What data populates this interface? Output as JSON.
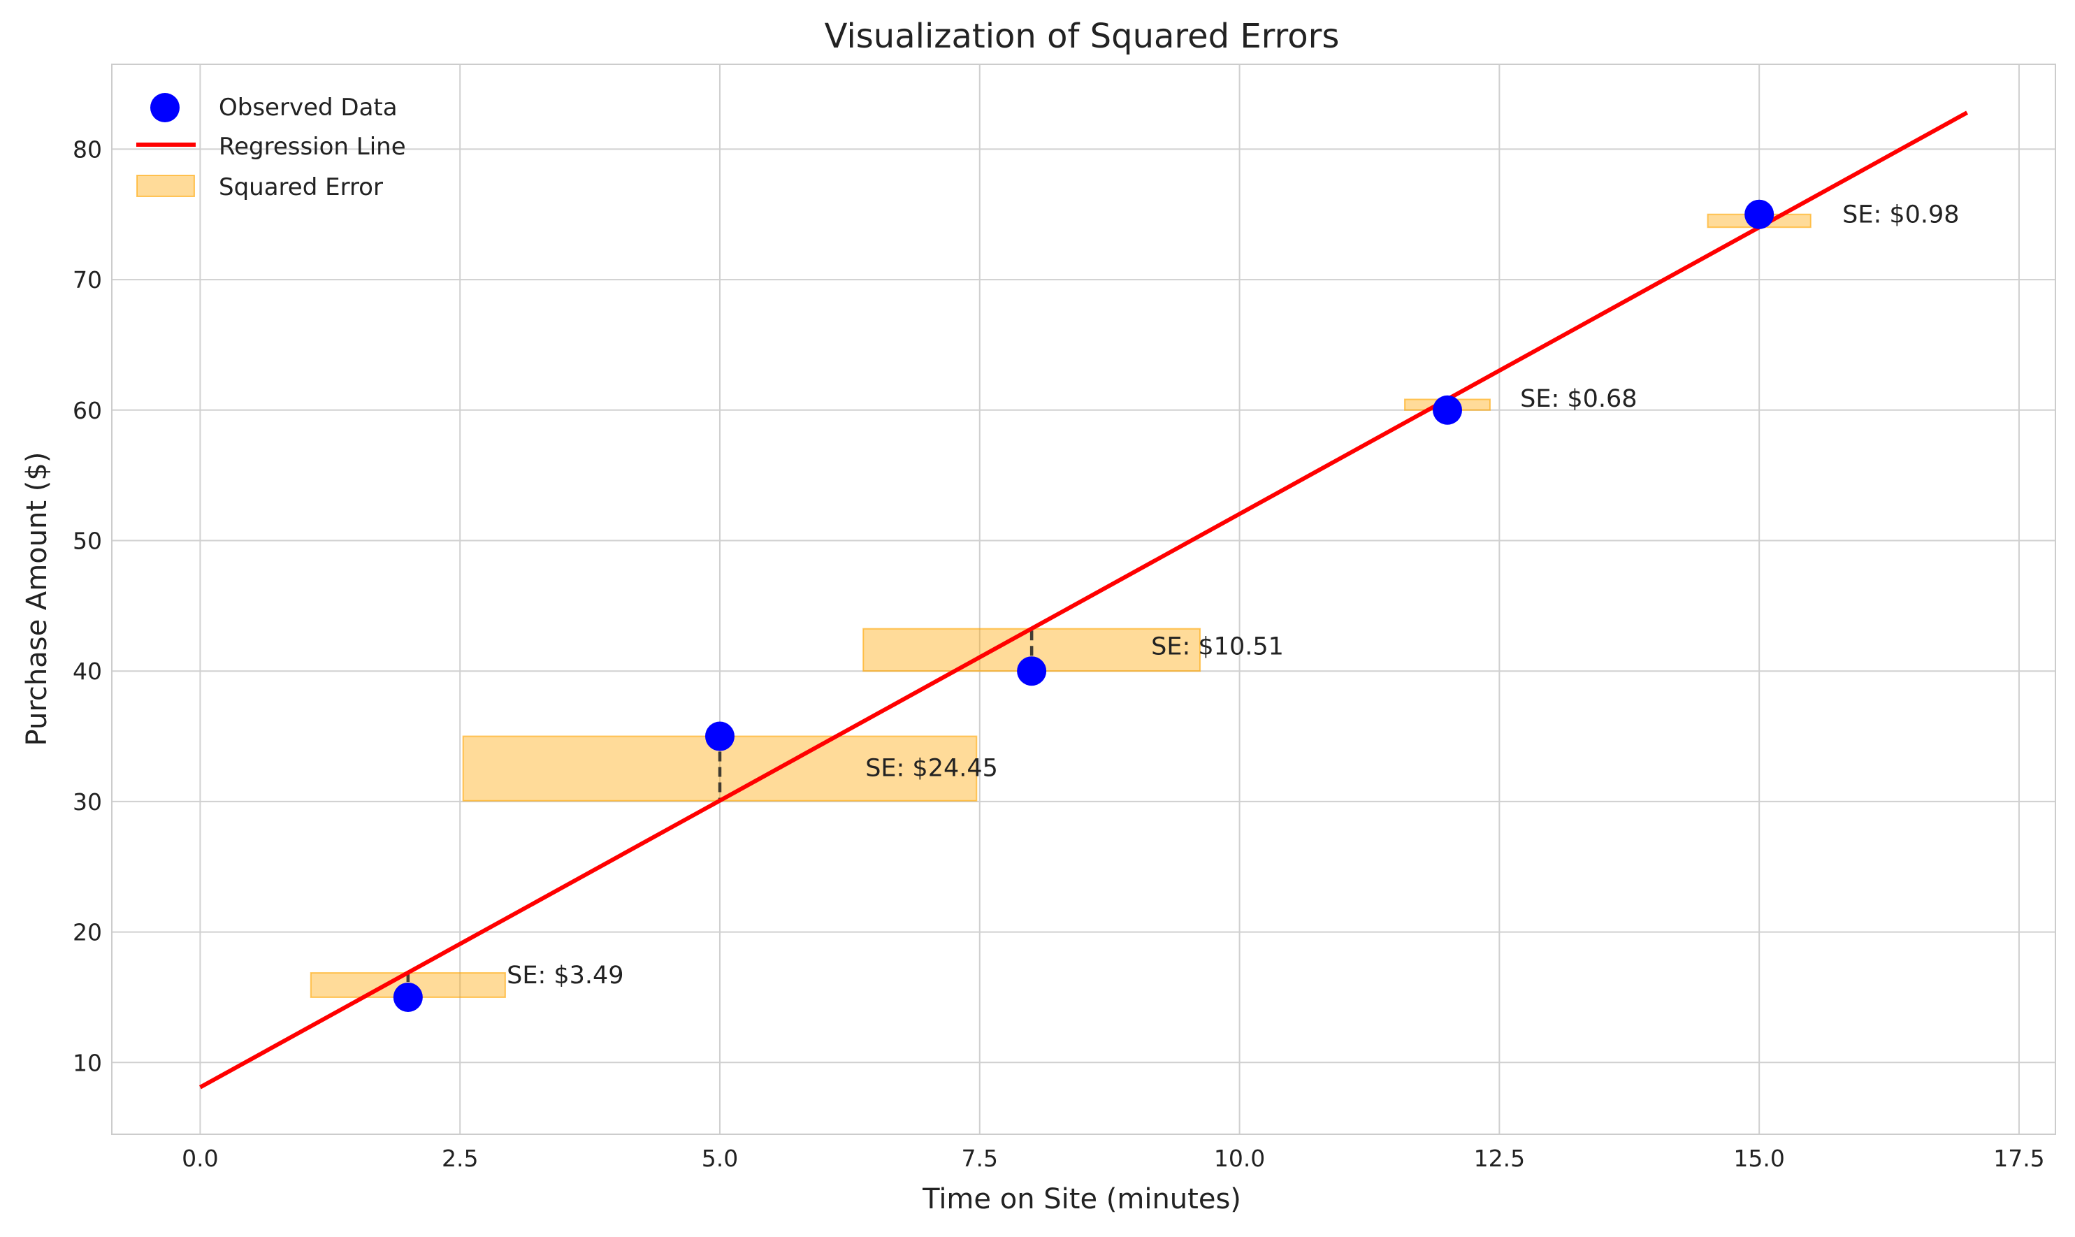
{
  "chart_data": {
    "type": "scatter",
    "title": "Visualization of Squared Errors",
    "xlabel": "Time on Site (minutes)",
    "ylabel": "Purchase Amount ($)",
    "xlim": [
      -0.85,
      17.85
    ],
    "ylim": [
      4.5,
      86.5
    ],
    "xticks": [
      0.0,
      2.5,
      5.0,
      7.5,
      10.0,
      12.5,
      15.0,
      17.5
    ],
    "xtick_labels": [
      "0.0",
      "2.5",
      "5.0",
      "7.5",
      "10.0",
      "12.5",
      "15.0",
      "17.5"
    ],
    "yticks": [
      10,
      20,
      30,
      40,
      50,
      60,
      70,
      80
    ],
    "ytick_labels": [
      "10",
      "20",
      "30",
      "40",
      "50",
      "60",
      "70",
      "80"
    ],
    "grid": true,
    "legend_position": "top-left",
    "legend": [
      {
        "label": "Observed Data",
        "kind": "marker",
        "color": "#0000ff"
      },
      {
        "label": "Regression Line",
        "kind": "line",
        "color": "#ff0000"
      },
      {
        "label": "Squared Error",
        "kind": "patch",
        "color": "#ffa500"
      }
    ],
    "observed": {
      "name": "Observed Data",
      "color": "#0000ff",
      "x": [
        2,
        5,
        8,
        12,
        15
      ],
      "y": [
        15,
        35,
        40,
        60,
        75
      ]
    },
    "regression_line": {
      "name": "Regression Line",
      "color": "#ff0000",
      "x": [
        0,
        17
      ],
      "y": [
        8.1,
        82.8
      ]
    },
    "squared_errors": [
      {
        "x": 2,
        "observed": 15,
        "predicted": 16.87,
        "label": "SE: $3.49",
        "label_x": 2.95,
        "label_y": 16.7
      },
      {
        "x": 5,
        "observed": 35,
        "predicted": 30.06,
        "label": "SE: $24.45",
        "label_x": 6.4,
        "label_y": 32.6
      },
      {
        "x": 8,
        "observed": 40,
        "predicted": 43.24,
        "label": "SE: $10.51",
        "label_x": 9.15,
        "label_y": 41.9
      },
      {
        "x": 12,
        "observed": 60,
        "predicted": 60.82,
        "label": "SE: $0.68",
        "label_x": 12.7,
        "label_y": 60.9
      },
      {
        "x": 15,
        "observed": 75,
        "predicted": 74.01,
        "label": "SE: $0.98",
        "label_x": 15.8,
        "label_y": 75.0
      }
    ],
    "colors": {
      "error_fill": "#ffa500",
      "error_line": "#222222",
      "grid": "#d0d0d0",
      "axes_edge": "#cccccc"
    }
  }
}
